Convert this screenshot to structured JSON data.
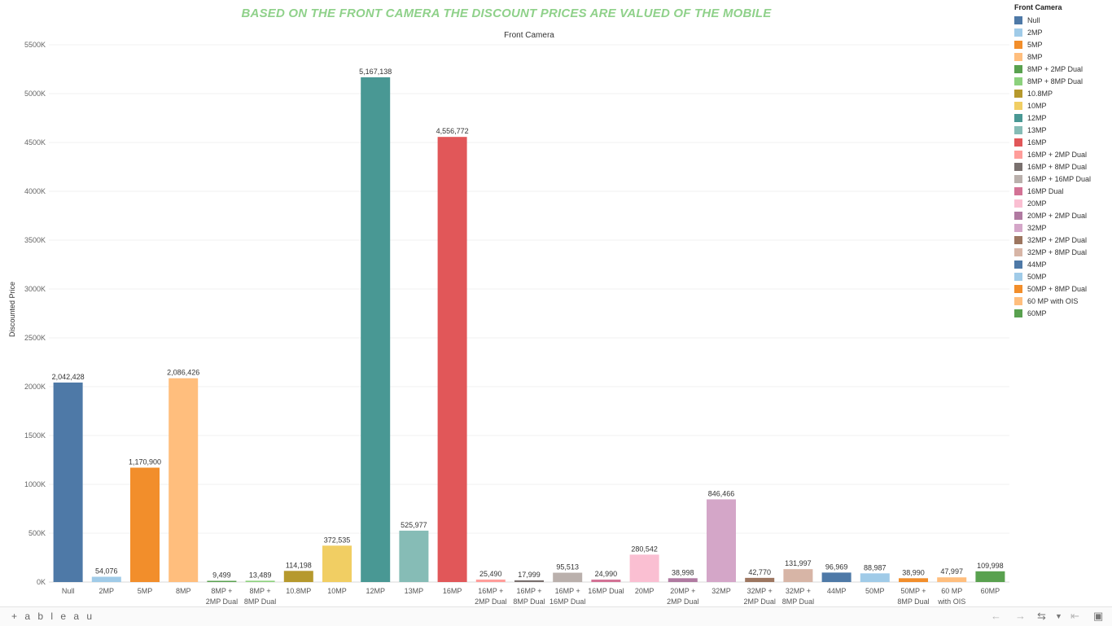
{
  "title": "BASED ON THE FRONT CAMERA THE DISCOUNT PRICES ARE VALUED OF THE MOBILE",
  "chart_data": {
    "type": "bar",
    "title": "BASED ON THE FRONT CAMERA THE DISCOUNT PRICES ARE VALUED OF THE MOBILE",
    "xlabel": "Front Camera",
    "ylabel": "Discounted Price",
    "ylim": [
      0,
      5500000
    ],
    "yticks": [
      "0K",
      "500K",
      "1000K",
      "1500K",
      "2000K",
      "2500K",
      "3000K",
      "3500K",
      "4000K",
      "4500K",
      "5000K",
      "5500K"
    ],
    "grid": true,
    "legend_title": "Front Camera",
    "legend_position": "right",
    "categories": [
      "Null",
      "2MP",
      "5MP",
      "8MP",
      "8MP + 2MP Dual",
      "8MP + 8MP Dual",
      "10.8MP",
      "10MP",
      "12MP",
      "13MP",
      "16MP",
      "16MP + 2MP Dual",
      "16MP + 8MP Dual",
      "16MP + 16MP Dual",
      "16MP Dual",
      "20MP",
      "20MP + 2MP Dual",
      "32MP",
      "32MP + 2MP Dual",
      "32MP + 8MP Dual",
      "44MP",
      "50MP",
      "50MP + 8MP Dual",
      "60 MP with OIS",
      "60MP"
    ],
    "tick_labels": [
      [
        "Null"
      ],
      [
        "2MP"
      ],
      [
        "5MP"
      ],
      [
        "8MP"
      ],
      [
        "8MP +",
        "2MP Dual"
      ],
      [
        "8MP +",
        "8MP Dual"
      ],
      [
        "10.8MP"
      ],
      [
        "10MP"
      ],
      [
        "12MP"
      ],
      [
        "13MP"
      ],
      [
        "16MP"
      ],
      [
        "16MP +",
        "2MP Dual"
      ],
      [
        "16MP +",
        "8MP Dual"
      ],
      [
        "16MP +",
        "16MP Dual"
      ],
      [
        "16MP Dual"
      ],
      [
        "20MP"
      ],
      [
        "20MP +",
        "2MP Dual"
      ],
      [
        "32MP"
      ],
      [
        "32MP +",
        "2MP Dual"
      ],
      [
        "32MP +",
        "8MP Dual"
      ],
      [
        "44MP"
      ],
      [
        "50MP"
      ],
      [
        "50MP +",
        "8MP Dual"
      ],
      [
        "60 MP",
        "with OIS"
      ],
      [
        "60MP"
      ]
    ],
    "values": [
      2042428,
      54076,
      1170900,
      2086426,
      9499,
      13489,
      114198,
      372535,
      5167138,
      525977,
      4556772,
      25490,
      17999,
      95513,
      24990,
      280542,
      38998,
      846466,
      42770,
      131997,
      96969,
      88987,
      38990,
      47997,
      109998
    ],
    "value_labels": [
      "2,042,428",
      "54,076",
      "1,170,900",
      "2,086,426",
      "9,499",
      "13,489",
      "114,198",
      "372,535",
      "5,167,138",
      "525,977",
      "4,556,772",
      "25,490",
      "17,999",
      "95,513",
      "24,990",
      "280,542",
      "38,998",
      "846,466",
      "42,770",
      "131,997",
      "96,969",
      "88,987",
      "38,990",
      "47,997",
      "109,998"
    ],
    "colors": [
      "#4e79a7",
      "#a0cbe8",
      "#f28e2b",
      "#ffbe7d",
      "#59a14f",
      "#8cd17d",
      "#b6992d",
      "#f1ce63",
      "#499894",
      "#86bcb6",
      "#e15759",
      "#ff9d9a",
      "#79706e",
      "#bab0ac",
      "#d37295",
      "#fabfd2",
      "#b07aa1",
      "#d4a6c8",
      "#9d7660",
      "#d7b5a6",
      "#4e79a7",
      "#a0cbe8",
      "#f28e2b",
      "#ffbe7d",
      "#59a14f"
    ]
  },
  "footer": {
    "logo_text": "+ a b l e a u",
    "icon_names": [
      "tableau-logo-icon",
      "undo-icon",
      "redo-icon",
      "revert-icon",
      "dropdown-icon",
      "reset-icon",
      "fullscreen-icon"
    ]
  }
}
